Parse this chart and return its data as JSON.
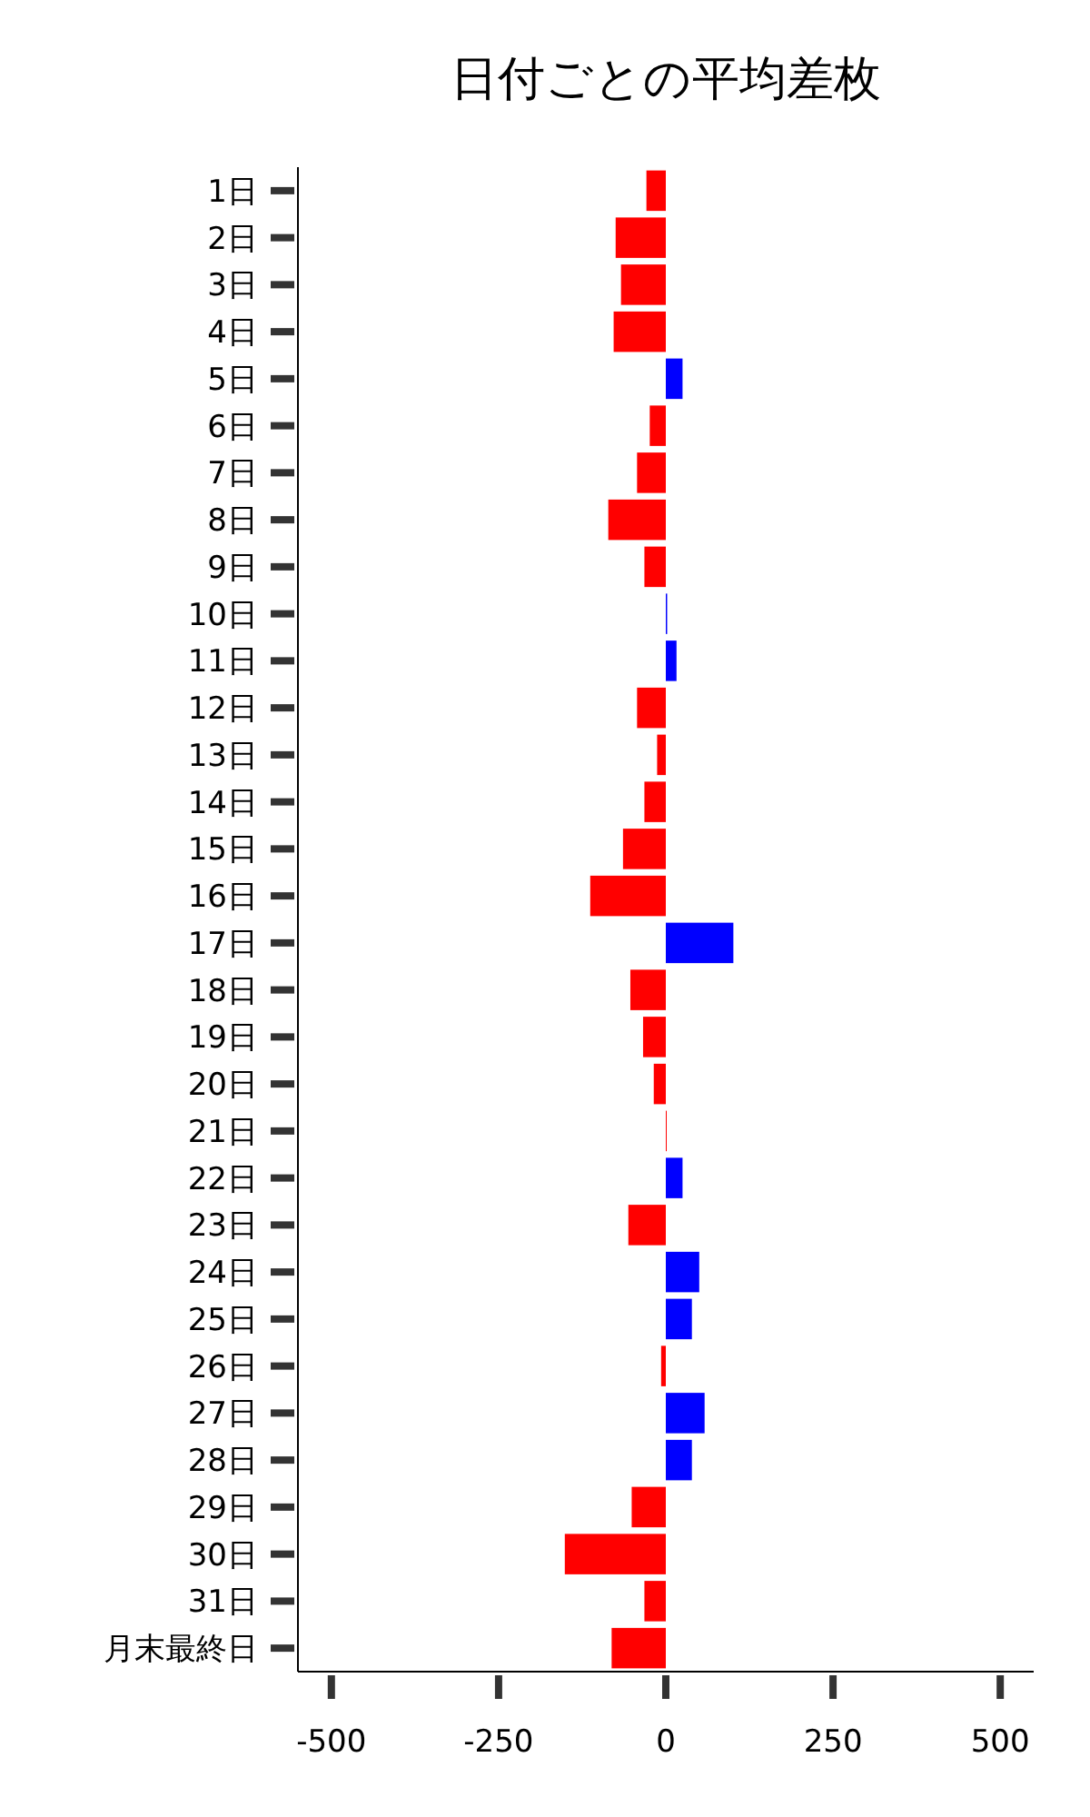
{
  "chart_data": {
    "type": "bar",
    "orientation": "horizontal",
    "title": "日付ごとの平均差枚",
    "categories": [
      "1日",
      "2日",
      "3日",
      "4日",
      "5日",
      "6日",
      "7日",
      "8日",
      "9日",
      "10日",
      "11日",
      "12日",
      "13日",
      "14日",
      "15日",
      "16日",
      "17日",
      "18日",
      "19日",
      "20日",
      "21日",
      "22日",
      "23日",
      "24日",
      "25日",
      "26日",
      "27日",
      "28日",
      "29日",
      "30日",
      "31日",
      "月末最終日"
    ],
    "values": [
      -29,
      -75,
      -67,
      -78,
      25,
      -24,
      -43,
      -86,
      -32,
      2,
      16,
      -43,
      -13,
      -32,
      -64,
      -113,
      101,
      -53,
      -34,
      -18,
      0,
      25,
      -56,
      50,
      39,
      -7,
      58,
      39,
      -51,
      -151,
      -32,
      -81
    ],
    "colors": [
      "#ff0000",
      "#ff0000",
      "#ff0000",
      "#ff0000",
      "#0000ff",
      "#ff0000",
      "#ff0000",
      "#ff0000",
      "#ff0000",
      "#0000ff",
      "#0000ff",
      "#ff0000",
      "#ff0000",
      "#ff0000",
      "#ff0000",
      "#ff0000",
      "#0000ff",
      "#ff0000",
      "#ff0000",
      "#ff0000",
      "#ff0000",
      "#0000ff",
      "#ff0000",
      "#0000ff",
      "#0000ff",
      "#ff0000",
      "#0000ff",
      "#0000ff",
      "#ff0000",
      "#ff0000",
      "#ff0000",
      "#ff0000"
    ],
    "xlim": [
      -550,
      550
    ],
    "xticks": [
      -500,
      -250,
      0,
      250,
      500
    ],
    "grid": false
  }
}
